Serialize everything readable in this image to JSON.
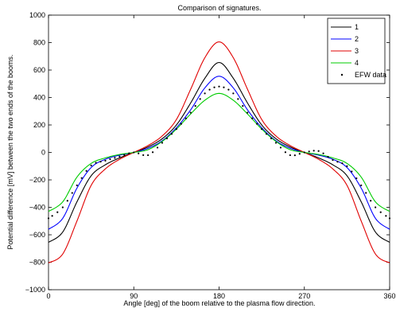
{
  "chart_data": {
    "type": "line",
    "title": "Comparison of signatures.",
    "xlabel": "Angle [deg] of the boom relative to the plasma flow direction.",
    "ylabel": "Potential difference [mV] between the two ends of the booms.",
    "xlim": [
      0,
      360
    ],
    "ylim": [
      -1000,
      1000
    ],
    "xticks": [
      0,
      90,
      180,
      270,
      360
    ],
    "xtick_labels": [
      "0",
      "90",
      "180",
      "270",
      "360"
    ],
    "yticks": [
      -1000,
      -800,
      -600,
      -400,
      -200,
      0,
      200,
      400,
      600,
      800,
      1000
    ],
    "ytick_labels": [
      "−1000",
      "−800",
      "−600",
      "−400",
      "−200",
      "0",
      "200",
      "400",
      "600",
      "800",
      "1000"
    ],
    "grid": false,
    "legend_position": "top-right",
    "colors": {
      "1": "#000000",
      "2": "#0000ff",
      "3": "#e00000",
      "4": "#00cc00",
      "EFW data": "#000000"
    },
    "x": [
      0,
      15,
      30,
      45,
      60,
      75,
      90,
      105,
      120,
      135,
      150,
      165,
      180,
      195,
      210,
      225,
      240,
      255,
      270,
      285,
      300,
      315,
      330,
      345,
      360
    ],
    "series": [
      {
        "name": "1",
        "style": "solid",
        "values": [
          -655,
          -580,
          -360,
          -170,
          -90,
          -40,
          0,
          40,
          100,
          200,
          360,
          540,
          655,
          540,
          360,
          200,
          100,
          40,
          0,
          -40,
          -90,
          -170,
          -360,
          -580,
          -655
        ]
      },
      {
        "name": "2",
        "style": "solid",
        "values": [
          -560,
          -480,
          -260,
          -110,
          -50,
          -20,
          0,
          30,
          85,
          180,
          310,
          470,
          555,
          470,
          310,
          180,
          85,
          30,
          0,
          -20,
          -50,
          -110,
          -260,
          -480,
          -560
        ]
      },
      {
        "name": "3",
        "style": "solid",
        "values": [
          -805,
          -740,
          -500,
          -240,
          -120,
          -50,
          0,
          50,
          120,
          240,
          460,
          690,
          805,
          690,
          460,
          240,
          120,
          50,
          0,
          -50,
          -120,
          -240,
          -500,
          -740,
          -805
        ]
      },
      {
        "name": "4",
        "style": "solid",
        "values": [
          -430,
          -360,
          -180,
          -80,
          -40,
          -15,
          0,
          20,
          80,
          170,
          280,
          380,
          430,
          380,
          280,
          170,
          80,
          20,
          0,
          -15,
          -40,
          -80,
          -180,
          -360,
          -430
        ]
      },
      {
        "name": "EFW data",
        "style": "dotted",
        "values": [
          -480,
          -400,
          -240,
          -95,
          -60,
          -30,
          0,
          -20,
          70,
          170,
          290,
          430,
          480,
          430,
          290,
          170,
          70,
          -20,
          0,
          10,
          -55,
          -100,
          -240,
          -400,
          -480
        ]
      }
    ]
  }
}
